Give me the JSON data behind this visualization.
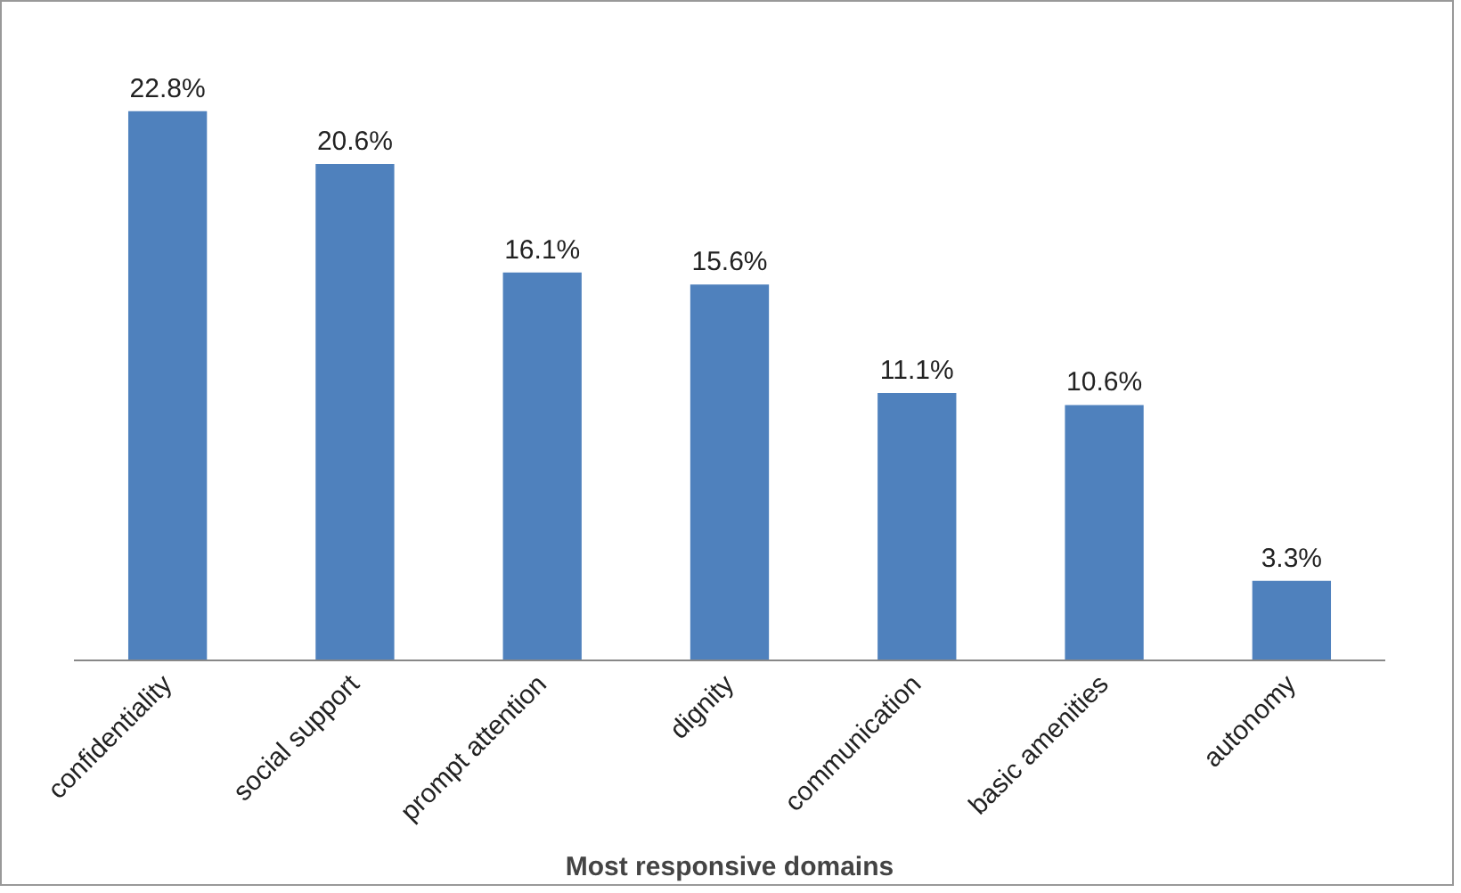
{
  "chart_data": {
    "type": "bar",
    "xlabel": "Most responsive domains",
    "categories": [
      "confidentiality",
      "social support",
      "prompt attention",
      "dignity",
      "communication",
      "basic amenities",
      "autonomy"
    ],
    "values": [
      22.8,
      20.6,
      16.1,
      15.6,
      11.1,
      10.6,
      3.3
    ],
    "value_labels": [
      "22.8%",
      "20.6%",
      "16.1%",
      "15.6%",
      "11.1%",
      "10.6%",
      "3.3%"
    ],
    "color": "#4f81bd",
    "grid": false
  }
}
